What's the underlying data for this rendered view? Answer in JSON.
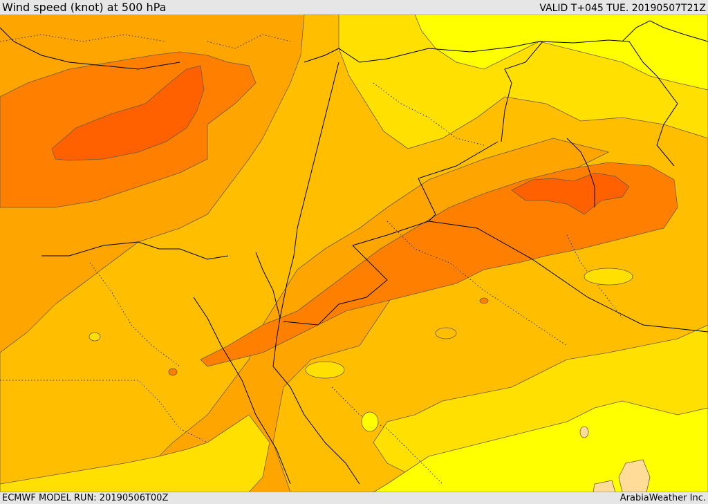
{
  "header": {
    "title": "Wind speed (knot) at 500 hPa",
    "valid_time": "VALID T+045 TUE. 20190507T21Z"
  },
  "footer": {
    "model_run": "ECMWF MODEL RUN: 20190506T00Z",
    "credit": "ArabiaWeather Inc."
  },
  "map": {
    "field": "wind-speed",
    "shading_colors": [
      "#ffdd99",
      "#ffff00",
      "#ffe000",
      "#ffbf00",
      "#ffa500",
      "#ff8000",
      "#ff6000"
    ],
    "contour_line_color": "#6b5a3a",
    "border_line_color": "#000000"
  }
}
